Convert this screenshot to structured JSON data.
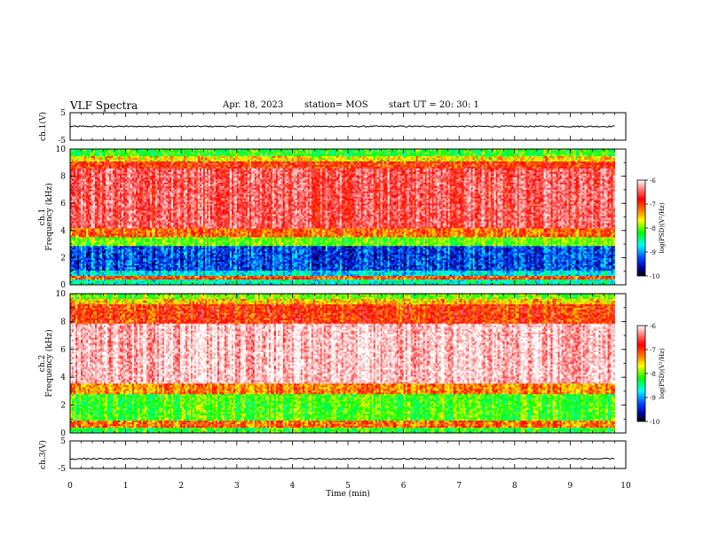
{
  "header": {
    "title": "VLF Spectra",
    "date": "Apr. 18, 2023",
    "station": "station= MOS",
    "start": "start  UT =   20: 30: 1"
  },
  "chart_data": [
    {
      "type": "line",
      "name": "ch1-voltage",
      "ylabel": "ch.1(V)",
      "ylim": [
        -5,
        5
      ],
      "yticks": [
        "5",
        "-5"
      ],
      "xlim": [
        0,
        10
      ],
      "level": 0,
      "trace_span_minutes": [
        0,
        9.8
      ]
    },
    {
      "type": "heatmap",
      "name": "ch1-spectrogram",
      "ylabel_top": "ch.1",
      "ylabel": "Frequency (kHz)",
      "ylim": [
        0,
        10
      ],
      "yticks": [
        "0",
        "2",
        "4",
        "6",
        "8",
        "10"
      ],
      "xlim": [
        0,
        10
      ],
      "data_span_minutes": [
        0,
        9.8
      ],
      "bands_khz_log_psd": [
        {
          "from": 0,
          "to": 0.4,
          "level": -8.6
        },
        {
          "from": 0.4,
          "to": 0.6,
          "level": -7.1
        },
        {
          "from": 0.6,
          "to": 1.0,
          "level": -8.8
        },
        {
          "from": 1.0,
          "to": 2.8,
          "level": -9.3
        },
        {
          "from": 2.8,
          "to": 3.5,
          "level": -8.0
        },
        {
          "from": 3.5,
          "to": 4.2,
          "level": -7.2
        },
        {
          "from": 4.2,
          "to": 8.6,
          "level": -6.6
        },
        {
          "from": 8.6,
          "to": 9.1,
          "level": -7.0
        },
        {
          "from": 9.1,
          "to": 9.5,
          "level": -7.6
        },
        {
          "from": 9.5,
          "to": 10,
          "level": -8.2
        }
      ],
      "colorbar": {
        "label": "log(PSD)(V²/Hz)",
        "ticks": [
          "-6",
          "-7",
          "-8",
          "-9",
          "-10"
        ],
        "range": [
          -10,
          -6
        ]
      }
    },
    {
      "type": "heatmap",
      "name": "ch2-spectrogram",
      "ylabel_top": "ch.2",
      "ylabel": "Frequency (kHz)",
      "ylim": [
        0,
        10
      ],
      "yticks": [
        "0",
        "2",
        "4",
        "6",
        "8",
        "10"
      ],
      "xlim": [
        0,
        10
      ],
      "data_span_minutes": [
        0,
        9.8
      ],
      "bands_khz_log_psd": [
        {
          "from": 0,
          "to": 0.4,
          "level": -8.2
        },
        {
          "from": 0.4,
          "to": 0.9,
          "level": -7.2
        },
        {
          "from": 0.9,
          "to": 2.8,
          "level": -8.1
        },
        {
          "from": 2.8,
          "to": 3.5,
          "level": -7.3
        },
        {
          "from": 3.5,
          "to": 7.8,
          "level": -6.2
        },
        {
          "from": 7.8,
          "to": 9.2,
          "level": -7.0
        },
        {
          "from": 9.2,
          "to": 9.6,
          "level": -7.5
        },
        {
          "from": 9.6,
          "to": 10,
          "level": -8.0
        }
      ],
      "colorbar": {
        "label": "log(PSD)(V²/Hz)",
        "ticks": [
          "-6",
          "-7",
          "-8",
          "-9",
          "-10"
        ],
        "range": [
          -10,
          -6
        ]
      }
    },
    {
      "type": "line",
      "name": "ch3-voltage",
      "ylabel": "ch.3(V)",
      "ylim": [
        -5,
        5
      ],
      "yticks": [
        "5",
        "-5"
      ],
      "xlim": [
        0,
        10
      ],
      "level": -1.5,
      "trace_span_minutes": [
        0,
        9.8
      ]
    }
  ],
  "x_axis": {
    "label": "Time (min)",
    "ticks": [
      "0",
      "1",
      "2",
      "3",
      "4",
      "5",
      "6",
      "7",
      "8",
      "9",
      "10"
    ]
  }
}
